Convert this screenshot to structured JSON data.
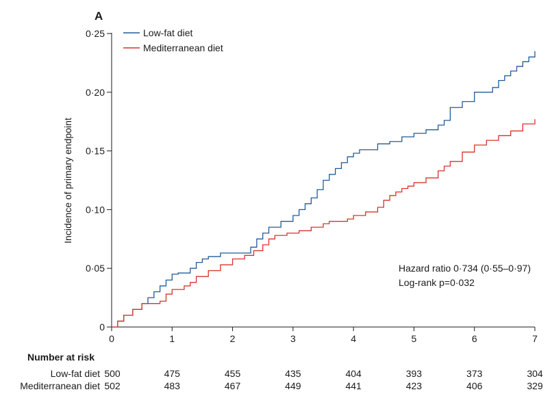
{
  "chart_data": {
    "type": "line",
    "panel_label": "A",
    "ylabel": "Incidence of primary endpoint",
    "xlabel": "",
    "xlim": [
      0,
      7
    ],
    "ylim": [
      0,
      0.25
    ],
    "x_ticks": [
      0,
      1,
      2,
      3,
      4,
      5,
      6,
      7
    ],
    "x_tick_labels": [
      "0",
      "1",
      "2",
      "3",
      "4",
      "5",
      "6",
      "7"
    ],
    "y_ticks": [
      0,
      0.05,
      0.1,
      0.15,
      0.2,
      0.25
    ],
    "y_tick_labels": [
      "0",
      "0·05",
      "0·10",
      "0·15",
      "0·20",
      "0·25"
    ],
    "grid": false,
    "legend_position": "top-left",
    "series": [
      {
        "name": "Low-fat diet",
        "color": "#1f5a96",
        "step": true,
        "x": [
          0,
          0.1,
          0.2,
          0.35,
          0.5,
          0.6,
          0.7,
          0.8,
          0.9,
          1.0,
          1.1,
          1.3,
          1.4,
          1.5,
          1.6,
          1.8,
          2.2,
          2.3,
          2.4,
          2.5,
          2.6,
          2.8,
          3.0,
          3.1,
          3.2,
          3.3,
          3.4,
          3.5,
          3.6,
          3.7,
          3.8,
          3.9,
          4.0,
          4.1,
          4.4,
          4.6,
          4.8,
          5.0,
          5.2,
          5.4,
          5.5,
          5.6,
          5.8,
          6.0,
          6.2,
          6.3,
          6.4,
          6.5,
          6.6,
          6.7,
          6.8,
          6.9,
          7.0
        ],
        "y": [
          0,
          0.005,
          0.01,
          0.015,
          0.02,
          0.025,
          0.03,
          0.035,
          0.04,
          0.045,
          0.046,
          0.05,
          0.055,
          0.058,
          0.06,
          0.063,
          0.063,
          0.068,
          0.075,
          0.08,
          0.085,
          0.09,
          0.095,
          0.1,
          0.105,
          0.11,
          0.117,
          0.125,
          0.13,
          0.135,
          0.14,
          0.145,
          0.148,
          0.151,
          0.156,
          0.158,
          0.162,
          0.165,
          0.168,
          0.172,
          0.176,
          0.187,
          0.192,
          0.2,
          0.2,
          0.204,
          0.21,
          0.214,
          0.218,
          0.222,
          0.226,
          0.23,
          0.235
        ]
      },
      {
        "name": "Mediterranean diet",
        "color": "#d9302a",
        "step": true,
        "x": [
          0,
          0.1,
          0.2,
          0.35,
          0.5,
          0.6,
          0.8,
          0.9,
          1.0,
          1.2,
          1.3,
          1.4,
          1.6,
          1.8,
          2.0,
          2.2,
          2.35,
          2.5,
          2.6,
          2.7,
          2.9,
          3.1,
          3.3,
          3.5,
          3.6,
          3.8,
          3.9,
          4.0,
          4.2,
          4.4,
          4.5,
          4.6,
          4.7,
          4.8,
          4.9,
          5.0,
          5.2,
          5.4,
          5.5,
          5.6,
          5.8,
          6.0,
          6.2,
          6.4,
          6.6,
          6.8,
          7.0
        ],
        "y": [
          0,
          0.005,
          0.01,
          0.015,
          0.02,
          0.02,
          0.022,
          0.028,
          0.032,
          0.035,
          0.038,
          0.043,
          0.048,
          0.053,
          0.058,
          0.061,
          0.065,
          0.07,
          0.075,
          0.078,
          0.08,
          0.082,
          0.085,
          0.088,
          0.09,
          0.09,
          0.092,
          0.095,
          0.098,
          0.102,
          0.108,
          0.112,
          0.115,
          0.118,
          0.12,
          0.123,
          0.127,
          0.133,
          0.137,
          0.141,
          0.149,
          0.155,
          0.159,
          0.163,
          0.167,
          0.173,
          0.177
        ]
      }
    ],
    "annotations": [
      "Hazard ratio 0·734 (0·55–0·97)",
      "Log-rank p=0·032"
    ],
    "risk_table": {
      "title": "Number at risk",
      "rows": [
        {
          "label": "Low-fat diet",
          "values": [
            "500",
            "475",
            "455",
            "435",
            "404",
            "393",
            "373",
            "304"
          ]
        },
        {
          "label": "Mediterranean diet",
          "values": [
            "502",
            "483",
            "467",
            "449",
            "441",
            "423",
            "406",
            "329"
          ]
        }
      ]
    }
  }
}
